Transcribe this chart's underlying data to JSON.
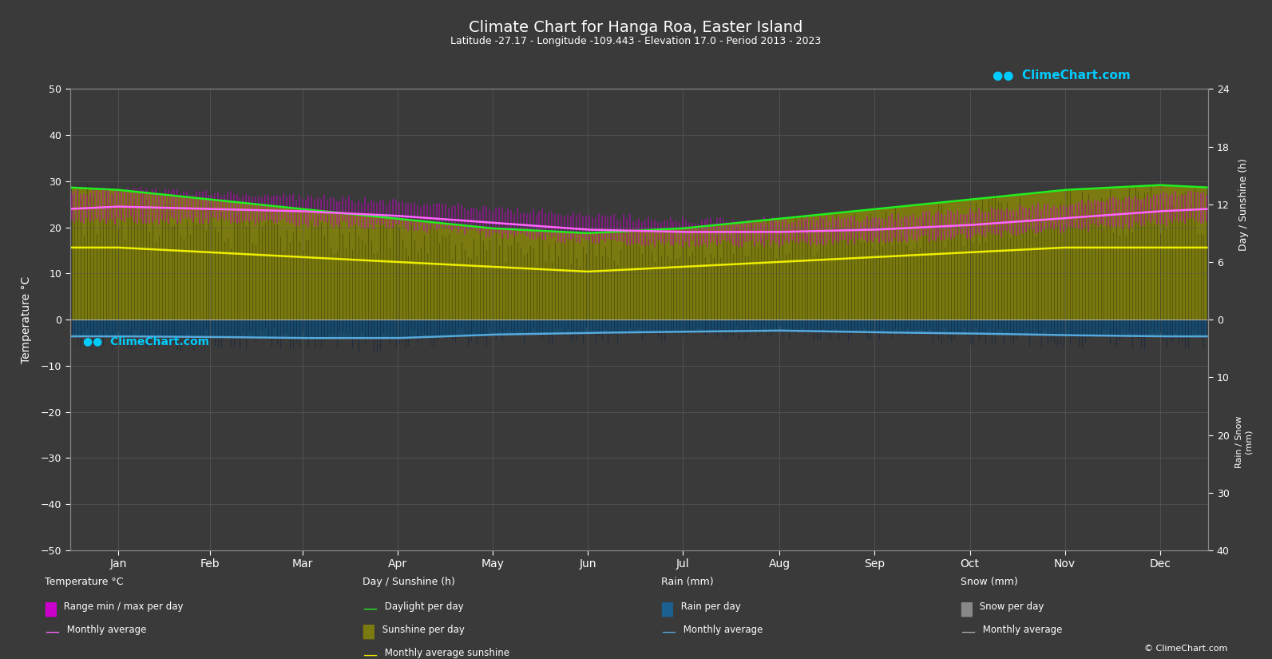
{
  "title": "Climate Chart for Hanga Roa, Easter Island",
  "subtitle": "Latitude -27.17 - Longitude -109.443 - Elevation 17.0 - Period 2013 - 2023",
  "background_color": "#3a3a3a",
  "plot_bg_color": "#3a3a3a",
  "grid_color": "#606060",
  "text_color": "#ffffff",
  "months": [
    "Jan",
    "Feb",
    "Mar",
    "Apr",
    "May",
    "Jun",
    "Jul",
    "Aug",
    "Sep",
    "Oct",
    "Nov",
    "Dec"
  ],
  "temp_ylim": [
    -50,
    50
  ],
  "temp_max_monthly": [
    28.0,
    27.5,
    26.5,
    25.5,
    24.0,
    22.5,
    21.5,
    21.5,
    22.0,
    23.5,
    25.0,
    27.0
  ],
  "temp_min_monthly": [
    21.5,
    21.5,
    21.0,
    20.0,
    18.5,
    17.0,
    16.5,
    16.5,
    17.0,
    18.0,
    19.5,
    21.0
  ],
  "temp_avg_monthly": [
    24.5,
    24.0,
    23.5,
    22.5,
    21.0,
    19.5,
    19.0,
    19.0,
    19.5,
    20.5,
    22.0,
    23.5
  ],
  "daylight_monthly": [
    13.5,
    12.5,
    11.5,
    10.5,
    9.5,
    9.0,
    9.5,
    10.5,
    11.5,
    12.5,
    13.5,
    14.0
  ],
  "sunshine_monthly": [
    7.5,
    7.0,
    6.5,
    6.0,
    5.5,
    5.0,
    5.5,
    6.0,
    6.5,
    7.0,
    7.5,
    7.5
  ],
  "rain_daily_avg": [
    2.9,
    3.0,
    3.2,
    3.2,
    2.6,
    2.3,
    2.1,
    1.9,
    2.2,
    2.4,
    2.7,
    2.9
  ],
  "sunshine_scale": 2.0833,
  "rain_scale": 1.25
}
